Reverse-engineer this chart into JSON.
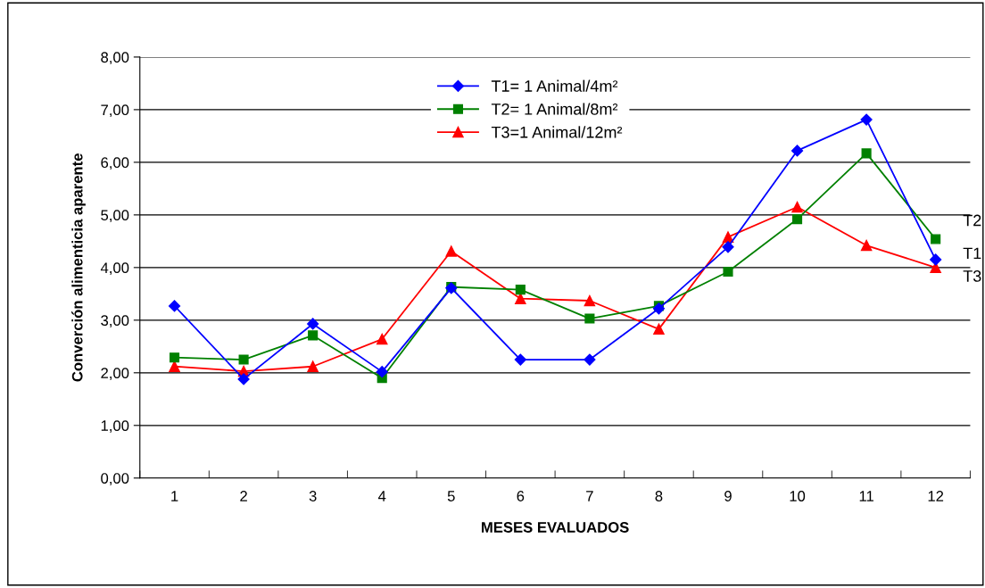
{
  "chart_data": {
    "type": "line",
    "xlabel": "MESES EVALUADOS",
    "ylabel": "Converción alimenticia aparente",
    "categories": [
      "1",
      "2",
      "3",
      "4",
      "5",
      "6",
      "7",
      "8",
      "9",
      "10",
      "11",
      "12"
    ],
    "series": [
      {
        "name": "T1= 1 Animal/4m²",
        "color": "#0000ff",
        "marker": "diamond",
        "values": [
          3.27,
          1.88,
          2.93,
          2.02,
          3.61,
          2.25,
          2.25,
          3.22,
          4.39,
          6.22,
          6.81,
          4.15
        ]
      },
      {
        "name": "T2= 1 Animal/8m²",
        "color": "#008000",
        "marker": "square",
        "values": [
          2.29,
          2.25,
          2.71,
          1.9,
          3.63,
          3.58,
          3.03,
          3.27,
          3.92,
          4.92,
          6.17,
          4.54
        ]
      },
      {
        "name": "T3=1 Animal/12m²",
        "color": "#ff0000",
        "marker": "triangle",
        "values": [
          2.12,
          2.03,
          2.12,
          2.64,
          4.31,
          3.41,
          3.37,
          2.83,
          4.58,
          5.15,
          4.42,
          4.0
        ]
      }
    ],
    "ylim": [
      0,
      8
    ],
    "yticks": [
      {
        "value": 0,
        "label": "0,00"
      },
      {
        "value": 1,
        "label": "1,00"
      },
      {
        "value": 2,
        "label": "2,00"
      },
      {
        "value": 3,
        "label": "3,00"
      },
      {
        "value": 4,
        "label": "4,00"
      },
      {
        "value": 5,
        "label": "5,00"
      },
      {
        "value": 6,
        "label": "6,00"
      },
      {
        "value": 7,
        "label": "7,00"
      },
      {
        "value": 8,
        "label": "8,00"
      }
    ],
    "grid": "y",
    "legend": "top",
    "line_style": "solid",
    "annotations": [
      {
        "text": "T2",
        "x": "12",
        "y": 4.54
      },
      {
        "text": "T1",
        "x": "12",
        "y": 4.15
      },
      {
        "text": "T3",
        "x": "12",
        "y": 4.0
      }
    ]
  }
}
